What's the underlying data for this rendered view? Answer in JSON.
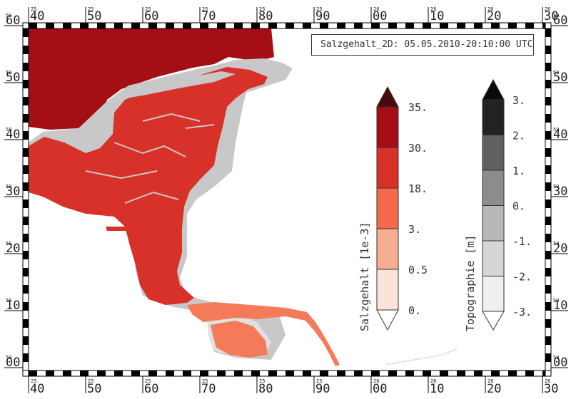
{
  "title": "Salzgehalt_2D: 05.05.2010-20:10:00 UTC",
  "x_axis": {
    "ticks": [
      {
        "minor": "25",
        "major": "40"
      },
      {
        "minor": "25",
        "major": "50"
      },
      {
        "minor": "25",
        "major": "60"
      },
      {
        "minor": "25",
        "major": "70"
      },
      {
        "minor": "25",
        "major": "80"
      },
      {
        "minor": "25",
        "major": "90"
      },
      {
        "minor": "26",
        "major": "00"
      },
      {
        "minor": "26",
        "major": "10"
      },
      {
        "minor": "26",
        "major": "20"
      },
      {
        "minor": "26",
        "major": "30"
      }
    ]
  },
  "y_axis": {
    "ticks": [
      {
        "minor": "59",
        "major": "60"
      },
      {
        "minor": "59",
        "major": "50"
      },
      {
        "minor": "59",
        "major": "40"
      },
      {
        "minor": "59",
        "major": "30"
      },
      {
        "minor": "59",
        "major": "20"
      },
      {
        "minor": "59",
        "major": "10"
      },
      {
        "minor": "59",
        "major": "00"
      }
    ]
  },
  "colors": {
    "sea_dark": "#a40e14",
    "estuary": "#d8312a",
    "river": "#f47a5a",
    "land_shallow": "#c8c8c8",
    "land_light": "#e2e2e2"
  },
  "salinity_colorbar": {
    "title": "Salzgehalt [1e-3]",
    "labels": [
      "35.",
      "30.",
      "18.",
      "3.",
      "0.5",
      "0."
    ],
    "colors": [
      "#4a0a0c",
      "#a40e14",
      "#d8312a",
      "#f4694a",
      "#f7ad92",
      "#fbe3d8",
      "#ffffff"
    ]
  },
  "topography_colorbar": {
    "title": "Topographie [m]",
    "labels": [
      "3.",
      "2.",
      "1.",
      "0.",
      "-1.",
      "-2.",
      "-3."
    ],
    "colors": [
      "#0a0a0a",
      "#222222",
      "#606060",
      "#8c8c8c",
      "#b8b8b8",
      "#d6d6d6",
      "#efefef",
      "#ffffff"
    ]
  }
}
